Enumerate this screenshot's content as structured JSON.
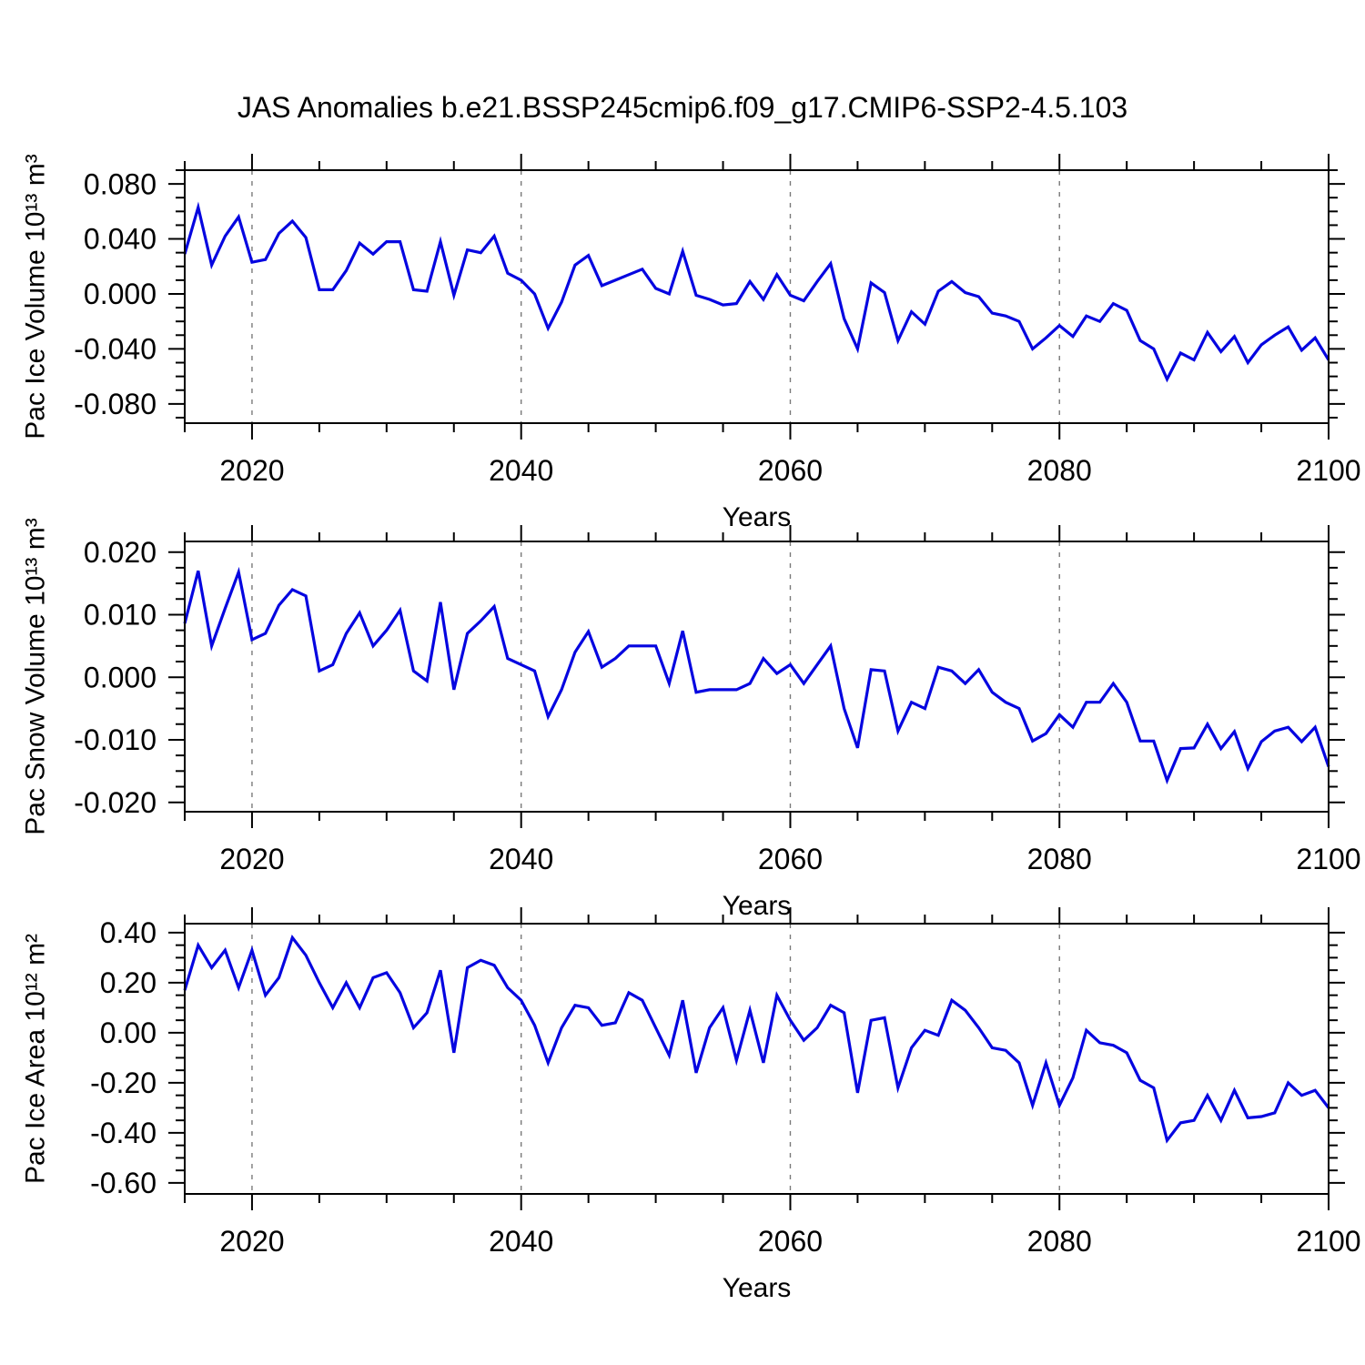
{
  "header": {
    "title": "JAS Anomalies b.e21.BSSP245cmip6.f09_g17.CMIP6-SSP2-4.5.103"
  },
  "style": {
    "background": "#ffffff",
    "line_color": "#0505e0",
    "frame_color": "#000000",
    "grid_color": "#7a7a7a",
    "text_color": "#000000"
  },
  "chart_data": [
    {
      "type": "line",
      "name": "pac-ice-volume",
      "title": "",
      "ylabel": "Pac Ice Volume 10¹³ m³",
      "xlabel": "Years",
      "legend": "none",
      "grid": "dashed-vertical-only",
      "xlim": [
        2015,
        2100
      ],
      "ylim": [
        -0.094,
        0.09
      ],
      "x_major_ticks": [
        2020,
        2040,
        2060,
        2080,
        2100
      ],
      "x_major_labels": [
        "2020",
        "2040",
        "2060",
        "2080",
        "2100"
      ],
      "x_minor_step": 5,
      "y_major_ticks": [
        0.08,
        0.04,
        0.0,
        -0.04,
        -0.08
      ],
      "y_major_labels": [
        "0.080",
        "0.040",
        "0.000",
        "-0.040",
        "-0.080"
      ],
      "y_minor_step": 0.01,
      "grid_x": [
        2020,
        2040,
        2060,
        2080
      ],
      "x_start": 2015,
      "x_step": 1,
      "values": [
        0.029,
        0.063,
        0.021,
        0.042,
        0.056,
        0.023,
        0.025,
        0.044,
        0.053,
        0.041,
        0.003,
        0.003,
        0.017,
        0.037,
        0.029,
        0.038,
        0.038,
        0.003,
        0.002,
        0.038,
        -0.001,
        0.032,
        0.03,
        0.042,
        0.015,
        0.01,
        0.0,
        -0.025,
        -0.006,
        0.021,
        0.028,
        0.006,
        0.01,
        0.014,
        0.018,
        0.004,
        0.0,
        0.031,
        -0.001,
        -0.004,
        -0.008,
        -0.007,
        0.009,
        -0.004,
        0.014,
        -0.001,
        -0.005,
        0.009,
        0.022,
        -0.018,
        -0.04,
        0.008,
        0.001,
        -0.034,
        -0.013,
        -0.022,
        0.002,
        0.009,
        0.001,
        -0.002,
        -0.014,
        -0.016,
        -0.02,
        -0.04,
        -0.032,
        -0.023,
        -0.031,
        -0.016,
        -0.02,
        -0.007,
        -0.012,
        -0.034,
        -0.04,
        -0.062,
        -0.043,
        -0.048,
        -0.028,
        -0.042,
        -0.031,
        -0.05,
        -0.037,
        -0.03,
        -0.024,
        -0.041,
        -0.032,
        -0.048
      ]
    },
    {
      "type": "line",
      "name": "pac-snow-volume",
      "title": "",
      "ylabel": "Pac Snow Volume 10¹³ m³",
      "xlabel": "Years",
      "legend": "none",
      "grid": "dashed-vertical-only",
      "xlim": [
        2015,
        2100
      ],
      "ylim": [
        -0.0215,
        0.0217
      ],
      "x_major_ticks": [
        2020,
        2040,
        2060,
        2080,
        2100
      ],
      "x_major_labels": [
        "2020",
        "2040",
        "2060",
        "2080",
        "2100"
      ],
      "x_minor_step": 5,
      "y_major_ticks": [
        0.02,
        0.01,
        0.0,
        -0.01,
        -0.02
      ],
      "y_major_labels": [
        "0.020",
        "0.010",
        "0.000",
        "-0.010",
        "-0.020"
      ],
      "y_minor_step": 0.0025,
      "grid_x": [
        2020,
        2040,
        2060,
        2080
      ],
      "x_start": 2015,
      "x_step": 1,
      "values": [
        0.0086,
        0.017,
        0.005,
        0.011,
        0.0168,
        0.006,
        0.007,
        0.0115,
        0.014,
        0.013,
        0.001,
        0.002,
        0.007,
        0.0103,
        0.005,
        0.0075,
        0.0107,
        0.001,
        -0.0006,
        0.012,
        -0.002,
        0.007,
        0.009,
        0.0113,
        0.003,
        0.002,
        0.001,
        -0.0063,
        -0.002,
        0.004,
        0.0073,
        0.0016,
        0.003,
        0.005,
        0.005,
        0.005,
        -0.001,
        0.0074,
        -0.0024,
        -0.002,
        -0.002,
        -0.002,
        -0.001,
        0.003,
        0.0006,
        0.002,
        -0.001,
        0.002,
        0.005,
        -0.005,
        -0.0113,
        0.0012,
        0.001,
        -0.0086,
        -0.004,
        -0.005,
        0.0016,
        0.001,
        -0.001,
        0.0012,
        -0.0024,
        -0.004,
        -0.005,
        -0.0102,
        -0.009,
        -0.006,
        -0.008,
        -0.004,
        -0.004,
        -0.001,
        -0.004,
        -0.0102,
        -0.0102,
        -0.0165,
        -0.0114,
        -0.0113,
        -0.0075,
        -0.0114,
        -0.0087,
        -0.0146,
        -0.0103,
        -0.0086,
        -0.008,
        -0.0103,
        -0.008,
        -0.0143
      ]
    },
    {
      "type": "line",
      "name": "pac-ice-area",
      "title": "",
      "ylabel": "Pac Ice Area 10¹² m²",
      "xlabel": "Years",
      "legend": "none",
      "grid": "dashed-vertical-only",
      "xlim": [
        2015,
        2100
      ],
      "ylim": [
        -0.644,
        0.436
      ],
      "x_major_ticks": [
        2020,
        2040,
        2060,
        2080,
        2100
      ],
      "x_major_labels": [
        "2020",
        "2040",
        "2060",
        "2080",
        "2100"
      ],
      "x_minor_step": 5,
      "y_major_ticks": [
        0.4,
        0.2,
        0.0,
        -0.2,
        -0.4,
        -0.6
      ],
      "y_major_labels": [
        "0.40",
        "0.20",
        "0.00",
        "-0.20",
        "-0.40",
        "-0.60"
      ],
      "y_minor_step": 0.05,
      "grid_x": [
        2020,
        2040,
        2060,
        2080
      ],
      "x_start": 2015,
      "x_step": 1,
      "values": [
        0.17,
        0.35,
        0.26,
        0.33,
        0.18,
        0.33,
        0.15,
        0.22,
        0.38,
        0.31,
        0.2,
        0.1,
        0.2,
        0.1,
        0.22,
        0.24,
        0.16,
        0.02,
        0.08,
        0.25,
        -0.08,
        0.26,
        0.29,
        0.27,
        0.18,
        0.13,
        0.03,
        -0.12,
        0.02,
        0.11,
        0.1,
        0.03,
        0.04,
        0.16,
        0.13,
        0.02,
        -0.09,
        0.13,
        -0.16,
        0.02,
        0.1,
        -0.11,
        0.09,
        -0.12,
        0.15,
        0.05,
        -0.03,
        0.02,
        0.11,
        0.08,
        -0.24,
        0.05,
        0.06,
        -0.22,
        -0.06,
        0.01,
        -0.01,
        0.13,
        0.09,
        0.02,
        -0.06,
        -0.07,
        -0.12,
        -0.29,
        -0.12,
        -0.29,
        -0.18,
        0.01,
        -0.04,
        -0.05,
        -0.08,
        -0.19,
        -0.22,
        -0.43,
        -0.36,
        -0.35,
        -0.25,
        -0.35,
        -0.23,
        -0.34,
        -0.335,
        -0.32,
        -0.2,
        -0.25,
        -0.23,
        -0.3
      ]
    }
  ]
}
